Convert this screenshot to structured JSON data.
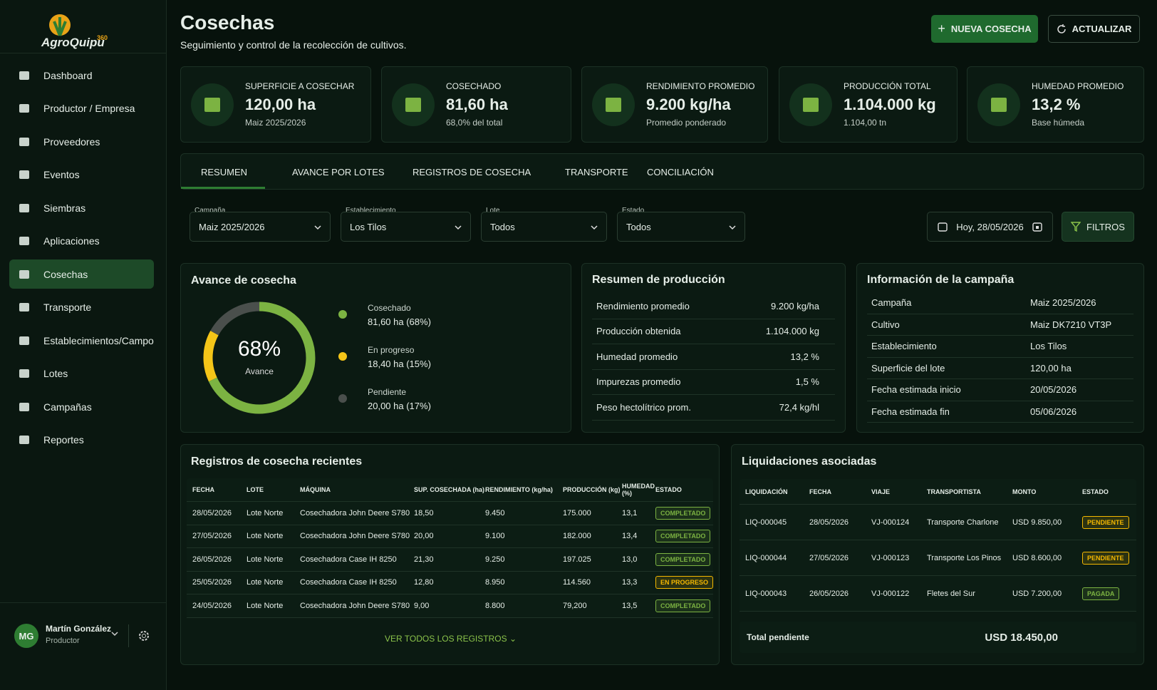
{
  "sidebar": {
    "logo": "AgroQuipu",
    "logo_badge": "360",
    "active": 6,
    "nav": [
      "Dashboard",
      "Productor / Empresa",
      "Proveedores",
      "Eventos",
      "Siembras",
      "Aplicaciones",
      "Cosechas",
      "Transporte",
      "Establecimientos/Campo",
      "Lotes",
      "Campañas",
      "Reportes"
    ],
    "user": {
      "initials": "MG",
      "name": "Martín González",
      "role": "Productor"
    }
  },
  "header": {
    "title": "Cosechas",
    "subtitle": "Seguimiento y control de la recolección de cultivos.",
    "primary_button": "NUEVA COSECHA",
    "secondary_button": "ACTUALIZAR"
  },
  "kpis": [
    {
      "label": "SUPERFICIE A COSECHAR",
      "value": "120,00 ha",
      "note": "Maiz 2025/2026"
    },
    {
      "label": "COSECHADO",
      "value": "81,60 ha",
      "note": "68,0% del total"
    },
    {
      "label": "RENDIMIENTO PROMEDIO",
      "value": "9.200 kg/ha",
      "note": "Promedio ponderado"
    },
    {
      "label": "PRODUCCIÓN TOTAL",
      "value": "1.104.000 kg",
      "note": "1.104,00 tn"
    },
    {
      "label": "HUMEDAD PROMEDIO",
      "value": "13,2 %",
      "note": "Base húmeda"
    }
  ],
  "tabs": [
    "RESUMEN",
    "AVANCE POR LOTES",
    "REGISTROS DE COSECHA",
    "TRANSPORTE",
    "CONCILIACIÓN"
  ],
  "active_tab": 0,
  "filters": [
    {
      "label": "Campaña",
      "value": "Maiz 2025/2026"
    },
    {
      "label": "Establecimiento",
      "value": "Los Tilos"
    },
    {
      "label": "Lote",
      "value": "Todos"
    },
    {
      "label": "Estado",
      "value": "Todos"
    }
  ],
  "date": "Hoy, 28/05/2026",
  "filter_button": "FILTROS",
  "progress": {
    "title": "Avance de cosecha",
    "center_value": "68%",
    "center_label": "Avance",
    "segments": [
      {
        "name": "Cosechado",
        "detail": "81,60 ha (68%)",
        "value": 68,
        "color": "#7cb342"
      },
      {
        "name": "En progreso",
        "detail": "18,40 ha (15%)",
        "value": 15,
        "color": "#f5c518"
      },
      {
        "name": "Pendiente",
        "detail": "20,00 ha (17%)",
        "value": 17,
        "color": "#4a4f4c"
      }
    ]
  },
  "production": {
    "title": "Resumen de producción",
    "rows": [
      [
        "Rendimiento promedio",
        "9.200 kg/ha"
      ],
      [
        "Producción obtenida",
        "1.104.000 kg"
      ],
      [
        "Humedad promedio",
        "13,2 %"
      ],
      [
        "Impurezas promedio",
        "1,5 %"
      ],
      [
        "Peso hectolítrico prom.",
        "72,4 kg/hl"
      ]
    ]
  },
  "campaign": {
    "title": "Información de la campaña",
    "rows": [
      [
        "Campaña",
        "Maiz 2025/2026"
      ],
      [
        "Cultivo",
        "Maiz DK7210 VT3P"
      ],
      [
        "Establecimiento",
        "Los Tilos"
      ],
      [
        "Superficie del lote",
        "120,00 ha"
      ],
      [
        "Fecha estimada inicio",
        "20/05/2026"
      ],
      [
        "Fecha estimada fin",
        "05/06/2026"
      ]
    ]
  },
  "records": {
    "title": "Registros de cosecha recientes",
    "columns": [
      "FECHA",
      "LOTE",
      "MÁQUINA",
      "SUP. COSECHADA (ha)",
      "RENDIMIENTO (kg/ha)",
      "PRODUCCIÓN (kg)",
      "HUMEDAD (%)",
      "ESTADO"
    ],
    "rows": [
      {
        "cells": [
          "28/05/2026",
          "Lote Norte",
          "Cosechadora John Deere S780",
          "18,50",
          "9.450",
          "175.000",
          "13,1",
          "COMPLETADO"
        ],
        "status_color": "#7cb342"
      },
      {
        "cells": [
          "27/05/2026",
          "Lote Norte",
          "Cosechadora John Deere S780",
          "20,00",
          "9.100",
          "182.000",
          "13,4",
          "COMPLETADO"
        ],
        "status_color": "#7cb342"
      },
      {
        "cells": [
          "26/05/2026",
          "Lote Norte",
          "Cosechadora Case IH 8250",
          "21,30",
          "9.250",
          "197.025",
          "13,0",
          "COMPLETADO"
        ],
        "status_color": "#7cb342"
      },
      {
        "cells": [
          "25/05/2026",
          "Lote Norte",
          "Cosechadora Case IH 8250",
          "12,80",
          "8.950",
          "114.560",
          "13,3",
          "EN PROGRESO"
        ],
        "status_color": "#f5b800"
      },
      {
        "cells": [
          "24/05/2026",
          "Lote Norte",
          "Cosechadora John Deere S780",
          "9,00",
          "8.800",
          "79,200",
          "13,5",
          "COMPLETADO"
        ],
        "status_color": "#7cb342"
      }
    ],
    "footer": "VER TODOS LOS REGISTROS"
  },
  "settlements": {
    "title": "Liquidaciones asociadas",
    "columns": [
      "LIQUIDACIÓN",
      "FECHA",
      "VIAJE",
      "TRANSPORTISTA",
      "MONTO",
      "ESTADO"
    ],
    "rows": [
      {
        "cells": [
          "LIQ-000045",
          "28/05/2026",
          "VJ-000124",
          "Transporte Charlone",
          "USD 9.850,00",
          "PENDIENTE"
        ],
        "status_color": "#f5b800"
      },
      {
        "cells": [
          "LIQ-000044",
          "27/05/2026",
          "VJ-000123",
          "Transporte Los Pinos",
          "USD 8.600,00",
          "PENDIENTE"
        ],
        "status_color": "#f5b800"
      },
      {
        "cells": [
          "LIQ-000043",
          "26/05/2026",
          "VJ-000122",
          "Fletes del Sur",
          "USD 7.200,00",
          "PAGADA"
        ],
        "status_color": "#7cb342"
      }
    ],
    "total_label": "Total pendiente",
    "total_value": "USD 18.450,00"
  }
}
